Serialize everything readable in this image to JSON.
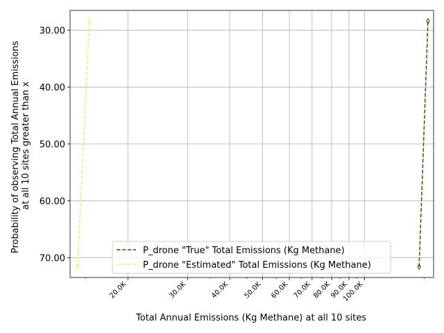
{
  "chart_data": {
    "type": "line",
    "xlabel": "Total Annual Emissions (Kg Methane) at all 10 sites",
    "ylabel_lines": [
      "Probability of observing Total Annual Emissions",
      "at all 10 sites greater than x"
    ],
    "x_scale": "log",
    "xlim": [
      13500,
      160000
    ],
    "ylim": [
      73.5,
      26.5
    ],
    "y_inverted": true,
    "x_major_ticks": [
      20000,
      30000,
      40000,
      50000,
      60000,
      70000,
      80000,
      90000,
      100000
    ],
    "x_tick_labels": [
      "20.0K",
      "30.0K",
      "40.0K",
      "50.0K",
      "60.0K",
      "70.0K",
      "80.0K",
      "90.0K",
      "100.0K"
    ],
    "x_minor_ticks": [
      15000,
      35000,
      45000,
      55000,
      65000,
      75000,
      85000,
      95000,
      150000
    ],
    "y_ticks": [
      30,
      40,
      50,
      60,
      70
    ],
    "y_tick_labels": [
      "30.00",
      "40.00",
      "50.00",
      "60.00",
      "70.00"
    ],
    "grid": true,
    "legend_position": "lower-center",
    "series": [
      {
        "name": "P_drone \"True\" Total Emissions (Kg Methane)",
        "color": "#5c4500",
        "style": "dashed",
        "marker": "thin-diamond",
        "points": [
          [
            145000,
            71.6
          ],
          [
            154000,
            28.4
          ]
        ]
      },
      {
        "name": "P_drone \"Estimated\" Total Emissions (Kg Methane)",
        "color": "#ffe37a",
        "style": "dashed",
        "marker": "thin-diamond",
        "points": [
          [
            14200,
            71.6
          ],
          [
            15400,
            28.4
          ]
        ]
      }
    ]
  }
}
